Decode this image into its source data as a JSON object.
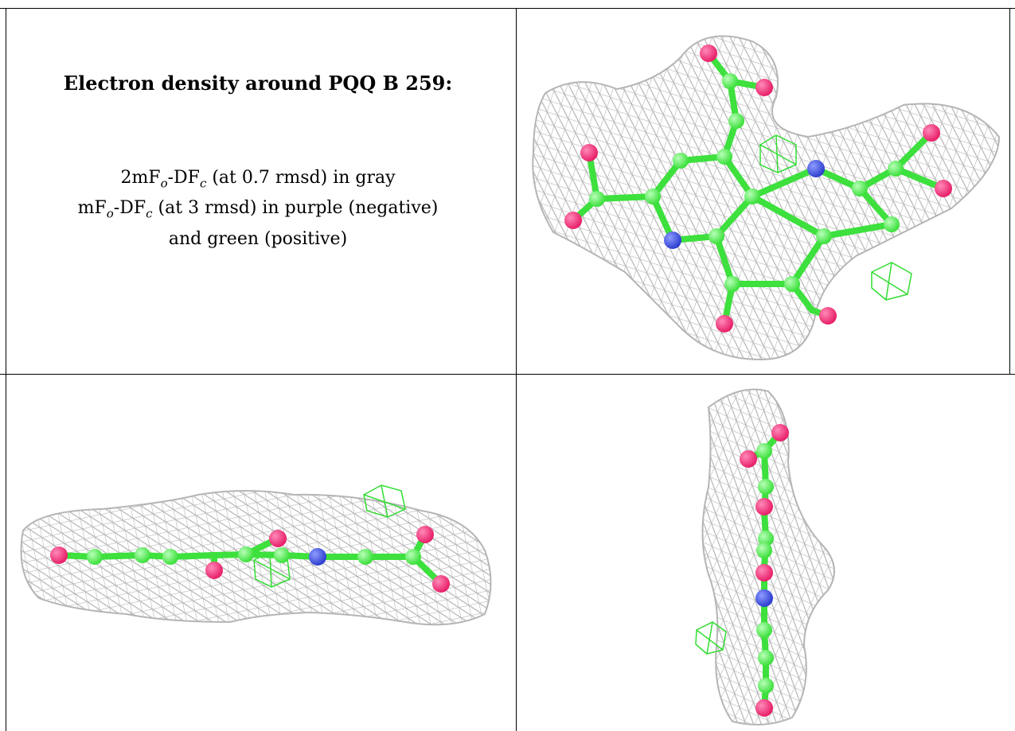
{
  "caption": {
    "title": "Electron density around PQQ B 259:",
    "line1": {
      "pre": "2mF",
      "sub1": "o",
      "mid": "-DF",
      "sub2": "c",
      "post": " (at 0.7 rmsd) in gray"
    },
    "line2": {
      "pre": "mF",
      "sub1": "o",
      "mid": "-DF",
      "sub2": "c",
      "post": " (at 3 rmsd) in purple (negative)"
    },
    "line3": "and green (positive)"
  },
  "colors": {
    "mesh": "#b5b5b5",
    "carbon": "#3de03d",
    "oxygen": "#e8206a",
    "nitrogen": "#2e3fd0",
    "positive_density": "#33dd33"
  },
  "panels": [
    "top-view",
    "side-view",
    "end-view"
  ]
}
